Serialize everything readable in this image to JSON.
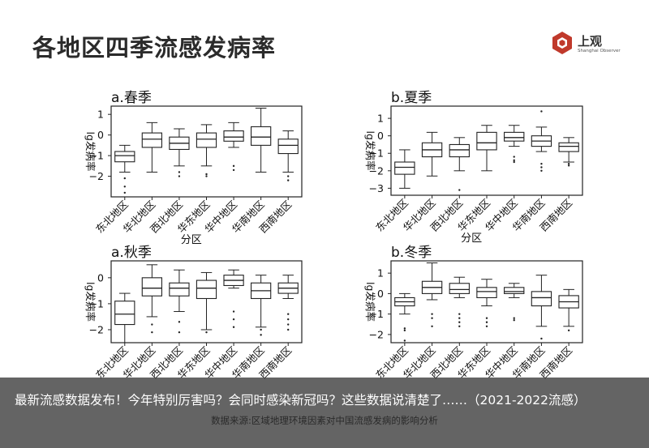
{
  "page_title": "各地区四季流感发病率",
  "logo": {
    "name": "上观",
    "subtitle": "Shanghai Observer",
    "icon": "hexagon-logo-icon",
    "color": "#c0392b"
  },
  "headline": "最新流感数据发布！今年特别厉害吗？会同时感染新冠吗？这些数据说清楚了……（2021-2022流感）",
  "source": "数据来源:区域地理环境因素对中国流感发病的影响分析",
  "chart_data": [
    {
      "type": "box",
      "title": "a.春季",
      "ylabel": "lg发病率",
      "xlabel": "分区",
      "categories": [
        "东北地区",
        "华北地区",
        "西北地区",
        "华东地区",
        "华中地区",
        "华南地区",
        "西南地区"
      ],
      "ylim": [
        -3,
        1.4
      ],
      "yticks": [
        1,
        0,
        -1,
        -2
      ],
      "boxes": [
        {
          "whislo": -1.8,
          "q1": -1.3,
          "med": -1.0,
          "q3": -0.8,
          "whishi": -0.5,
          "fliers": [
            -2.1,
            -2.5,
            -2.8
          ]
        },
        {
          "whislo": -1.8,
          "q1": -0.6,
          "med": -0.2,
          "q3": 0.1,
          "whishi": 0.6,
          "fliers": []
        },
        {
          "whislo": -1.5,
          "q1": -0.7,
          "med": -0.4,
          "q3": -0.1,
          "whishi": 0.3,
          "fliers": [
            -1.8,
            -2.0
          ]
        },
        {
          "whislo": -1.5,
          "q1": -0.6,
          "med": -0.2,
          "q3": 0.1,
          "whishi": 0.5,
          "fliers": [
            -1.9,
            -2.0
          ]
        },
        {
          "whislo": -0.6,
          "q1": -0.3,
          "med": -0.1,
          "q3": 0.2,
          "whishi": 0.6,
          "fliers": [
            -1.5,
            -1.7
          ]
        },
        {
          "whislo": -1.8,
          "q1": -0.5,
          "med": -0.1,
          "q3": 0.4,
          "whishi": 1.3,
          "fliers": []
        },
        {
          "whislo": -1.8,
          "q1": -0.9,
          "med": -0.5,
          "q3": -0.2,
          "whishi": 0.2,
          "fliers": [
            -2.0,
            -2.2
          ]
        }
      ]
    },
    {
      "type": "box",
      "title": "b.夏季",
      "ylabel": "lg发病率",
      "xlabel": "分区",
      "categories": [
        "东北地区",
        "华北地区",
        "西北地区",
        "华东地区",
        "华中地区",
        "华南地区",
        "西南地区"
      ],
      "ylim": [
        -3.4,
        1.7
      ],
      "yticks": [
        1,
        0,
        -1,
        -2,
        -3
      ],
      "boxes": [
        {
          "whislo": -3.0,
          "q1": -2.2,
          "med": -1.8,
          "q3": -1.5,
          "whishi": -0.8,
          "fliers": []
        },
        {
          "whislo": -2.3,
          "q1": -1.2,
          "med": -0.8,
          "q3": -0.4,
          "whishi": 0.2,
          "fliers": []
        },
        {
          "whislo": -2.0,
          "q1": -1.2,
          "med": -0.8,
          "q3": -0.5,
          "whishi": -0.1,
          "fliers": [
            -3.1
          ]
        },
        {
          "whislo": -2.0,
          "q1": -0.8,
          "med": -0.4,
          "q3": 0.2,
          "whishi": 0.6,
          "fliers": []
        },
        {
          "whislo": -0.6,
          "q1": -0.3,
          "med": -0.1,
          "q3": 0.2,
          "whishi": 0.6,
          "fliers": [
            -1.2,
            -1.4,
            -1.5
          ]
        },
        {
          "whislo": -0.9,
          "q1": -0.6,
          "med": -0.3,
          "q3": 0.0,
          "whishi": 0.5,
          "fliers": [
            -1.6,
            -1.8,
            -2.0,
            1.4
          ]
        },
        {
          "whislo": -1.5,
          "q1": -0.9,
          "med": -0.6,
          "q3": -0.4,
          "whishi": -0.1,
          "fliers": [
            -1.6,
            -1.7
          ]
        }
      ]
    },
    {
      "type": "box",
      "title": "a.秋季",
      "ylabel": "lg发病率",
      "xlabel": "",
      "categories": [
        "东北地区",
        "华北地区",
        "西北地区",
        "华东地区",
        "华中地区",
        "华南地区",
        "西南地区"
      ],
      "ylim": [
        -2.5,
        0.65
      ],
      "yticks": [
        0,
        -1,
        -2
      ],
      "boxes": [
        {
          "whislo": -2.5,
          "q1": -1.8,
          "med": -1.4,
          "q3": -0.9,
          "whishi": -0.6,
          "fliers": []
        },
        {
          "whislo": -1.5,
          "q1": -0.7,
          "med": -0.4,
          "q3": 0.0,
          "whishi": 0.5,
          "fliers": [
            -1.8,
            -2.1
          ]
        },
        {
          "whislo": -1.3,
          "q1": -0.7,
          "med": -0.4,
          "q3": -0.2,
          "whishi": 0.3,
          "fliers": [
            -1.7,
            -2.1
          ]
        },
        {
          "whislo": -2.0,
          "q1": -0.8,
          "med": -0.4,
          "q3": -0.1,
          "whishi": 0.2,
          "fliers": [
            -2.1
          ]
        },
        {
          "whislo": -0.4,
          "q1": -0.3,
          "med": -0.1,
          "q3": 0.1,
          "whishi": 0.3,
          "fliers": [
            -1.3,
            -1.6,
            -1.9
          ]
        },
        {
          "whislo": -1.9,
          "q1": -0.8,
          "med": -0.5,
          "q3": -0.2,
          "whishi": 0.1,
          "fliers": [
            -2.0,
            -2.2
          ]
        },
        {
          "whislo": -0.8,
          "q1": -0.6,
          "med": -0.4,
          "q3": -0.2,
          "whishi": 0.1,
          "fliers": [
            -1.4,
            -1.6,
            -1.8,
            -2.0
          ]
        }
      ]
    },
    {
      "type": "box",
      "title": "b.冬季",
      "ylabel": "lg发病率",
      "xlabel": "",
      "categories": [
        "东北地区",
        "华北地区",
        "西北地区",
        "华东地区",
        "华中地区",
        "华南地区",
        "西南地区"
      ],
      "ylim": [
        -2.4,
        1.6
      ],
      "yticks": [
        1,
        0,
        -1,
        -2
      ],
      "boxes": [
        {
          "whislo": -1.0,
          "q1": -0.6,
          "med": -0.4,
          "q3": -0.2,
          "whishi": 0.0,
          "fliers": [
            -1.7,
            -1.8,
            -2.3
          ]
        },
        {
          "whislo": -0.3,
          "q1": 0.0,
          "med": 0.3,
          "q3": 0.6,
          "whishi": 1.5,
          "fliers": [
            -1.0,
            -1.2,
            -1.6
          ]
        },
        {
          "whislo": -0.2,
          "q1": 0.0,
          "med": 0.2,
          "q3": 0.5,
          "whishi": 0.8,
          "fliers": [
            -1.0,
            -1.2,
            -1.4,
            -1.6
          ]
        },
        {
          "whislo": -0.6,
          "q1": -0.2,
          "med": 0.1,
          "q3": 0.3,
          "whishi": 0.7,
          "fliers": [
            -1.2,
            -1.4,
            -1.6
          ]
        },
        {
          "whislo": -0.2,
          "q1": 0.0,
          "med": 0.1,
          "q3": 0.3,
          "whishi": 0.5,
          "fliers": [
            -1.2,
            -1.3
          ]
        },
        {
          "whislo": -1.6,
          "q1": -0.6,
          "med": -0.2,
          "q3": 0.1,
          "whishi": 0.9,
          "fliers": [
            -2.2
          ]
        },
        {
          "whislo": -1.6,
          "q1": -0.7,
          "med": -0.4,
          "q3": -0.1,
          "whishi": 0.2,
          "fliers": [
            -1.8
          ]
        }
      ]
    }
  ]
}
